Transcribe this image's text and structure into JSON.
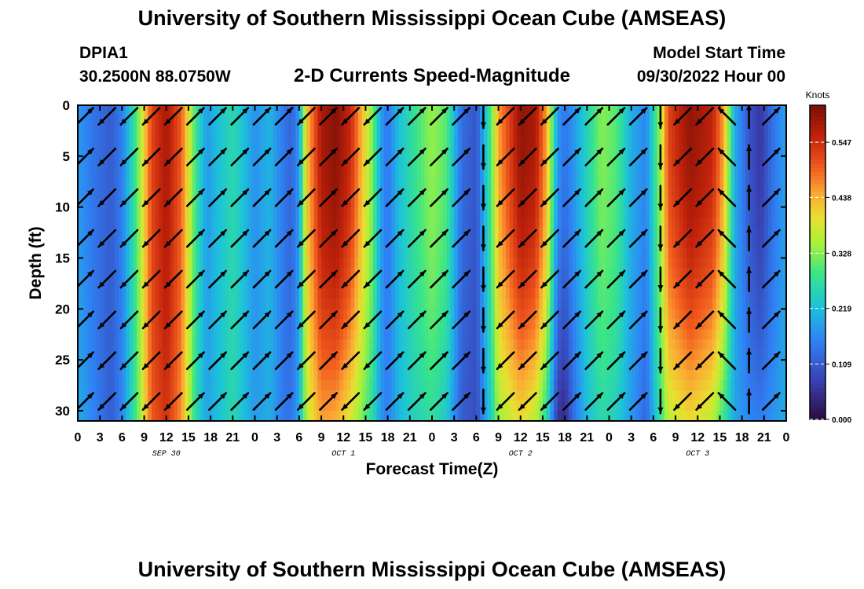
{
  "header": {
    "title": "University of Southern Mississippi Ocean Cube (AMSEAS)",
    "station_id": "DPIA1",
    "station_coords": "30.2500N  88.0750W",
    "model_start_label": "Model Start Time",
    "model_start_value": "09/30/2022 Hour 00",
    "footer_title": "University of Southern Mississippi Ocean Cube (AMSEAS)"
  },
  "chart_data": {
    "type": "heatmap",
    "title": "2-D Currents Speed-Magnitude",
    "xlabel": "Forecast Time(Z)",
    "ylabel": "Depth (ft)",
    "x_range_hours": [
      0,
      96
    ],
    "ylim": [
      0,
      31
    ],
    "y_ticks": [
      0,
      5,
      10,
      15,
      20,
      25,
      30
    ],
    "x_tick_labels": [
      "0",
      "3",
      "6",
      "9",
      "12",
      "15",
      "18",
      "21",
      "0",
      "3",
      "6",
      "9",
      "12",
      "15",
      "18",
      "21",
      "0",
      "3",
      "6",
      "9",
      "12",
      "15",
      "18",
      "21",
      "0",
      "3",
      "6",
      "9",
      "12",
      "15",
      "18",
      "21",
      "0"
    ],
    "day_labels": [
      {
        "label": "SEP 30",
        "hour": 12
      },
      {
        "label": "OCT 1",
        "hour": 36
      },
      {
        "label": "OCT 2",
        "hour": 60
      },
      {
        "label": "OCT 3",
        "hour": 84
      }
    ],
    "colorbar": {
      "unit": "Knots",
      "min": 0.0,
      "max": 0.62,
      "ticks": [
        0.0,
        0.109,
        0.219,
        0.328,
        0.438,
        0.547
      ],
      "tick_labels": [
        "0.000",
        "0.109",
        "0.219",
        "0.328",
        "0.438",
        "0.547"
      ]
    },
    "speed_profile_surface": [
      {
        "hour": 0,
        "speed": 0.18
      },
      {
        "hour": 2,
        "speed": 0.14
      },
      {
        "hour": 4.5,
        "speed": 0.11
      },
      {
        "hour": 6,
        "speed": 0.15
      },
      {
        "hour": 8,
        "speed": 0.3
      },
      {
        "hour": 10,
        "speed": 0.52
      },
      {
        "hour": 12,
        "speed": 0.58
      },
      {
        "hour": 14,
        "speed": 0.5
      },
      {
        "hour": 16,
        "speed": 0.28
      },
      {
        "hour": 17.5,
        "speed": 0.18
      },
      {
        "hour": 19,
        "speed": 0.22
      },
      {
        "hour": 21,
        "speed": 0.26
      },
      {
        "hour": 22.5,
        "speed": 0.22
      },
      {
        "hour": 24,
        "speed": 0.17
      },
      {
        "hour": 26,
        "speed": 0.21
      },
      {
        "hour": 28,
        "speed": 0.14
      },
      {
        "hour": 29,
        "speed": 0.12
      },
      {
        "hour": 30,
        "speed": 0.18
      },
      {
        "hour": 31,
        "speed": 0.42
      },
      {
        "hour": 33,
        "speed": 0.58
      },
      {
        "hour": 35,
        "speed": 0.61
      },
      {
        "hour": 37,
        "speed": 0.55
      },
      {
        "hour": 40,
        "speed": 0.32
      },
      {
        "hour": 41,
        "speed": 0.19
      },
      {
        "hour": 42,
        "speed": 0.14
      },
      {
        "hour": 43.5,
        "speed": 0.22
      },
      {
        "hour": 45,
        "speed": 0.26
      },
      {
        "hour": 48,
        "speed": 0.34
      },
      {
        "hour": 50,
        "speed": 0.3
      },
      {
        "hour": 52,
        "speed": 0.13
      },
      {
        "hour": 54,
        "speed": 0.1
      },
      {
        "hour": 56,
        "speed": 0.3
      },
      {
        "hour": 57,
        "speed": 0.45
      },
      {
        "hour": 60,
        "speed": 0.6
      },
      {
        "hour": 62,
        "speed": 0.58
      },
      {
        "hour": 63.5,
        "speed": 0.45
      },
      {
        "hour": 65,
        "speed": 0.18
      },
      {
        "hour": 66,
        "speed": 0.14
      },
      {
        "hour": 67,
        "speed": 0.17
      },
      {
        "hour": 69,
        "speed": 0.25
      },
      {
        "hour": 71,
        "speed": 0.33
      },
      {
        "hour": 73,
        "speed": 0.3
      },
      {
        "hour": 75,
        "speed": 0.2
      },
      {
        "hour": 77,
        "speed": 0.16
      },
      {
        "hour": 79,
        "speed": 0.35
      },
      {
        "hour": 80,
        "speed": 0.52
      },
      {
        "hour": 83,
        "speed": 0.6
      },
      {
        "hour": 86,
        "speed": 0.56
      },
      {
        "hour": 87.5,
        "speed": 0.45
      },
      {
        "hour": 89,
        "speed": 0.2
      },
      {
        "hour": 91,
        "speed": 0.1
      },
      {
        "hour": 92.5,
        "speed": 0.06
      },
      {
        "hour": 94,
        "speed": 0.13
      },
      {
        "hour": 96,
        "speed": 0.19
      }
    ],
    "speed_profile_bottom": [
      {
        "hour": 0,
        "speed": 0.2
      },
      {
        "hour": 2,
        "speed": 0.16
      },
      {
        "hour": 4.5,
        "speed": 0.11
      },
      {
        "hour": 6,
        "speed": 0.16
      },
      {
        "hour": 8,
        "speed": 0.3
      },
      {
        "hour": 10,
        "speed": 0.5
      },
      {
        "hour": 12,
        "speed": 0.54
      },
      {
        "hour": 14,
        "speed": 0.46
      },
      {
        "hour": 16,
        "speed": 0.26
      },
      {
        "hour": 17.5,
        "speed": 0.19
      },
      {
        "hour": 19,
        "speed": 0.22
      },
      {
        "hour": 21,
        "speed": 0.26
      },
      {
        "hour": 22.5,
        "speed": 0.22
      },
      {
        "hour": 24,
        "speed": 0.18
      },
      {
        "hour": 26,
        "speed": 0.2
      },
      {
        "hour": 28,
        "speed": 0.14
      },
      {
        "hour": 29,
        "speed": 0.14
      },
      {
        "hour": 30,
        "speed": 0.2
      },
      {
        "hour": 31,
        "speed": 0.36
      },
      {
        "hour": 33,
        "speed": 0.45
      },
      {
        "hour": 35,
        "speed": 0.44
      },
      {
        "hour": 37,
        "speed": 0.38
      },
      {
        "hour": 40,
        "speed": 0.26
      },
      {
        "hour": 41,
        "speed": 0.18
      },
      {
        "hour": 42,
        "speed": 0.15
      },
      {
        "hour": 43.5,
        "speed": 0.21
      },
      {
        "hour": 45,
        "speed": 0.24
      },
      {
        "hour": 48,
        "speed": 0.27
      },
      {
        "hour": 50,
        "speed": 0.23
      },
      {
        "hour": 52,
        "speed": 0.11
      },
      {
        "hour": 54,
        "speed": 0.09
      },
      {
        "hour": 56,
        "speed": 0.24
      },
      {
        "hour": 57,
        "speed": 0.34
      },
      {
        "hour": 60,
        "speed": 0.4
      },
      {
        "hour": 62,
        "speed": 0.36
      },
      {
        "hour": 63.5,
        "speed": 0.26
      },
      {
        "hour": 65,
        "speed": 0.06
      },
      {
        "hour": 66,
        "speed": 0.04
      },
      {
        "hour": 67,
        "speed": 0.12
      },
      {
        "hour": 69,
        "speed": 0.22
      },
      {
        "hour": 71,
        "speed": 0.26
      },
      {
        "hour": 73,
        "speed": 0.24
      },
      {
        "hour": 75,
        "speed": 0.18
      },
      {
        "hour": 77,
        "speed": 0.12
      },
      {
        "hour": 79,
        "speed": 0.28
      },
      {
        "hour": 80,
        "speed": 0.36
      },
      {
        "hour": 83,
        "speed": 0.4
      },
      {
        "hour": 86,
        "speed": 0.36
      },
      {
        "hour": 87.5,
        "speed": 0.28
      },
      {
        "hour": 89,
        "speed": 0.19
      },
      {
        "hour": 91,
        "speed": 0.16
      },
      {
        "hour": 92.5,
        "speed": 0.15
      },
      {
        "hour": 94,
        "speed": 0.17
      },
      {
        "hour": 96,
        "speed": 0.2
      }
    ],
    "vector_hours": [
      0,
      3,
      6,
      9,
      12,
      15,
      18,
      21,
      24,
      27,
      30,
      33,
      36,
      39,
      42,
      45,
      48,
      51,
      54,
      57,
      60,
      63,
      66,
      69,
      72,
      75,
      78,
      81,
      84,
      87,
      90,
      93
    ],
    "vector_depths_ft": [
      0,
      4,
      8,
      12,
      16,
      20,
      24,
      28
    ],
    "vector_directions": [
      "NE",
      "SW",
      "SW",
      "SW",
      "SW",
      "NE",
      "NE",
      "NE",
      "NE",
      "NE",
      "SW",
      "NE",
      "SW",
      "SW",
      "NE",
      "NE",
      "NE",
      "NE",
      "S",
      "SW",
      "SW",
      "SW",
      "NE",
      "NE",
      "NE",
      "NE",
      "S",
      "SW",
      "SW",
      "NW",
      "N",
      "NE"
    ]
  }
}
